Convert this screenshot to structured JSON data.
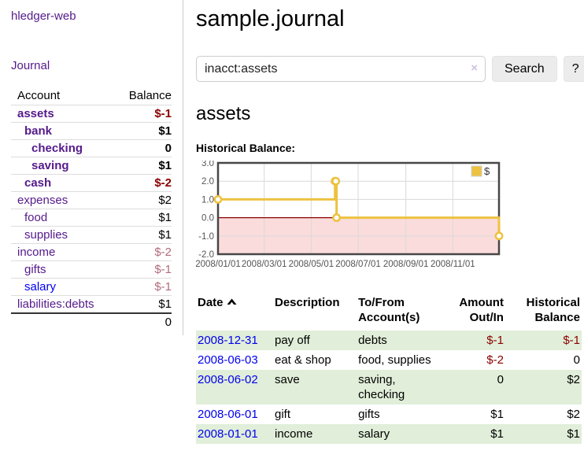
{
  "colors": {
    "link_blue": "#0000EE",
    "link_visited_purple": "#551A8B",
    "negative_strong": "#8b0000",
    "negative_soft": "#b26b7b",
    "row_stripe_green": "#e1eed9",
    "chart_series_gold": "#edc240",
    "chart_negative_region_pink": "#fbdcdc",
    "chart_zero_line_red": "#8b0000"
  },
  "sidebar": {
    "brand": "hledger-web",
    "nav": {
      "journal": "Journal"
    },
    "accounts": {
      "headers": [
        "Account",
        "Balance"
      ],
      "rows": [
        {
          "account": "assets",
          "balance": "$-1",
          "depth": 0,
          "bold": true,
          "balance_tone": "neg-strong",
          "link": "visited"
        },
        {
          "account": "bank",
          "balance": "$1",
          "depth": 1,
          "bold": true,
          "balance_tone": "",
          "link": "visited"
        },
        {
          "account": "checking",
          "balance": "0",
          "depth": 2,
          "bold": true,
          "balance_tone": "",
          "link": "visited"
        },
        {
          "account": "saving",
          "balance": "$1",
          "depth": 2,
          "bold": true,
          "balance_tone": "",
          "link": "visited"
        },
        {
          "account": "cash",
          "balance": "$-2",
          "depth": 1,
          "bold": true,
          "balance_tone": "neg-strong",
          "link": "visited"
        },
        {
          "account": "expenses",
          "balance": "$2",
          "depth": 0,
          "bold": false,
          "balance_tone": "",
          "link": "visited"
        },
        {
          "account": "food",
          "balance": "$1",
          "depth": 1,
          "bold": false,
          "balance_tone": "",
          "link": "visited"
        },
        {
          "account": "supplies",
          "balance": "$1",
          "depth": 1,
          "bold": false,
          "balance_tone": "",
          "link": "visited"
        },
        {
          "account": "income",
          "balance": "$-2",
          "depth": 0,
          "bold": false,
          "balance_tone": "neg-soft",
          "link": "visited"
        },
        {
          "account": "gifts",
          "balance": "$-1",
          "depth": 1,
          "bold": false,
          "balance_tone": "neg-soft",
          "link": "visited"
        },
        {
          "account": "salary",
          "balance": "$-1",
          "depth": 1,
          "bold": false,
          "balance_tone": "neg-soft",
          "link": "unvisited"
        },
        {
          "account": "liabilities:debts",
          "balance": "$1",
          "depth": 0,
          "bold": false,
          "balance_tone": "",
          "link": "visited"
        }
      ],
      "total": "0"
    }
  },
  "main": {
    "title": "sample.journal",
    "search": {
      "value": "inacct:assets",
      "clear_icon": "×",
      "search_button": "Search",
      "help_button": "?"
    },
    "account_heading": "assets",
    "chart_heading": "Historical Balance:"
  },
  "chart_data": {
    "type": "line",
    "title": "Historical Balance:",
    "legend": [
      {
        "label": "$",
        "color": "#edc240"
      }
    ],
    "legend_position": "top-right",
    "grid": true,
    "x_start": "2008-01-01",
    "x_end": "2008-12-31",
    "x_ticks": [
      "2008/01/01",
      "2008/03/01",
      "2008/05/01",
      "2008/07/01",
      "2008/09/01",
      "2008/11/01"
    ],
    "y_ticks": [
      3.0,
      2.0,
      1.0,
      0.0,
      -1.0,
      -2.0
    ],
    "ylim": [
      -2,
      3
    ],
    "negative_region": true,
    "series": [
      {
        "name": "$",
        "color": "#edc240",
        "step": true,
        "points": [
          [
            "2008-01-01",
            1
          ],
          [
            "2008-06-01",
            2
          ],
          [
            "2008-06-02",
            2
          ],
          [
            "2008-06-03",
            0
          ],
          [
            "2008-12-31",
            -1
          ]
        ]
      }
    ]
  },
  "register": {
    "headers": [
      "Date",
      "Description",
      "To/From Account(s)",
      "Amount Out/In",
      "Historical Balance"
    ],
    "sort": {
      "column": "Date",
      "direction": "ascending"
    },
    "rows": [
      {
        "date": "2008-12-31",
        "description": "pay off",
        "accounts": "debts",
        "amount": "$-1",
        "amount_negative": true,
        "balance": "$-1",
        "balance_negative": true
      },
      {
        "date": "2008-06-03",
        "description": "eat & shop",
        "accounts": "food, supplies",
        "amount": "$-2",
        "amount_negative": true,
        "balance": "0",
        "balance_negative": false
      },
      {
        "date": "2008-06-02",
        "description": "save",
        "accounts": "saving, checking",
        "amount": "0",
        "amount_negative": false,
        "balance": "$2",
        "balance_negative": false
      },
      {
        "date": "2008-06-01",
        "description": "gift",
        "accounts": "gifts",
        "amount": "$1",
        "amount_negative": false,
        "balance": "$2",
        "balance_negative": false
      },
      {
        "date": "2008-01-01",
        "description": "income",
        "accounts": "salary",
        "amount": "$1",
        "amount_negative": false,
        "balance": "$1",
        "balance_negative": false
      }
    ]
  }
}
